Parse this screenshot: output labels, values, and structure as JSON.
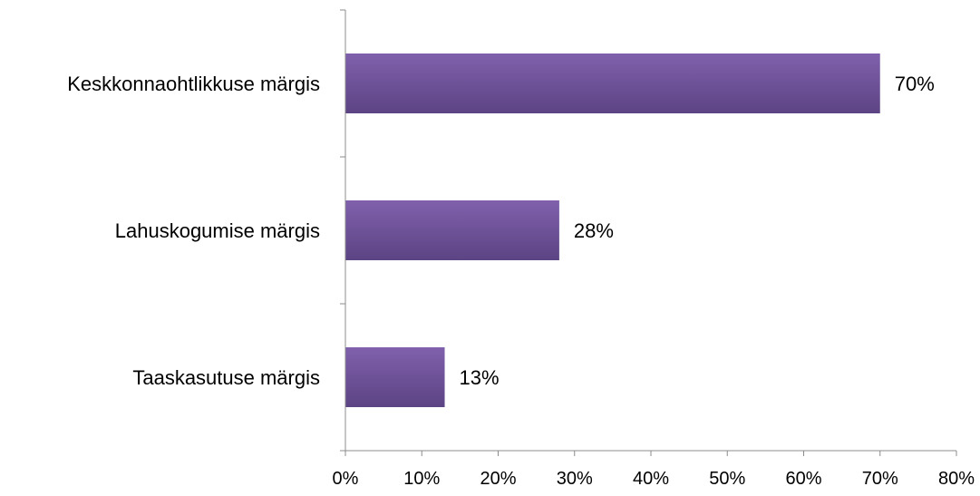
{
  "chart_data": {
    "type": "bar",
    "orientation": "horizontal",
    "categories": [
      "Keskkonnaohtlikkuse märgis",
      "Lahuskogumise märgis",
      "Taaskasutuse märgis"
    ],
    "values": [
      70,
      28,
      13
    ],
    "value_labels": [
      "70%",
      "28%",
      "13%"
    ],
    "xlim": [
      0,
      80
    ],
    "xticks": [
      0,
      10,
      20,
      30,
      40,
      50,
      60,
      70,
      80
    ],
    "xtick_labels": [
      "0%",
      "10%",
      "20%",
      "30%",
      "40%",
      "50%",
      "60%",
      "70%",
      "80%"
    ],
    "title": "",
    "xlabel": "",
    "ylabel": "",
    "grid": false,
    "legend": "none",
    "bar_color": "#6a4f96",
    "bar_color_light": "#8060ac",
    "bar_color_dark": "#5c4484",
    "axis_color": "#8c8c8c"
  }
}
